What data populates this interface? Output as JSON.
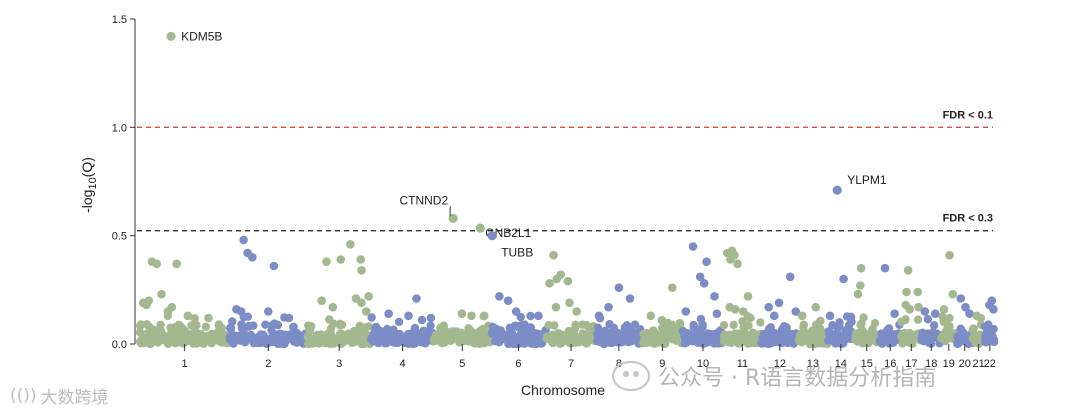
{
  "chart_data": {
    "type": "scatter",
    "subtype": "manhattan",
    "title": "",
    "xlabel": "Chromosome",
    "ylabel_prefix": "-log",
    "ylabel_sub": "10",
    "ylabel_suffix": "(Q)",
    "ylim": [
      0,
      1.5
    ],
    "yticks": [
      0.0,
      0.5,
      1.0,
      1.5
    ],
    "ytick_labels": [
      "0.0",
      "0.5",
      "1.0",
      "1.5"
    ],
    "chromosomes": [
      "1",
      "2",
      "3",
      "4",
      "5",
      "6",
      "7",
      "8",
      "9",
      "10",
      "11",
      "12",
      "13",
      "14",
      "15",
      "16",
      "17",
      "18",
      "19",
      "20",
      "21",
      "22"
    ],
    "chrom_spans": [
      [
        0,
        112
      ],
      [
        112,
        210
      ],
      [
        210,
        290
      ],
      [
        290,
        369
      ],
      [
        369,
        440
      ],
      [
        440,
        510
      ],
      [
        510,
        572
      ],
      [
        572,
        630
      ],
      [
        630,
        681
      ],
      [
        681,
        732
      ],
      [
        732,
        780
      ],
      [
        780,
        826
      ],
      [
        826,
        863
      ],
      [
        863,
        896
      ],
      [
        896,
        928
      ],
      [
        928,
        955
      ],
      [
        955,
        981
      ],
      [
        981,
        1005
      ],
      [
        1005,
        1025
      ],
      [
        1025,
        1045
      ],
      [
        1045,
        1060
      ],
      [
        1060,
        1073
      ]
    ],
    "x_range": [
      0,
      1073
    ],
    "colors": {
      "odd": "#a3b88e",
      "even": "#7b8cc7"
    },
    "thresholds": [
      {
        "label": "FDR < 0.1",
        "value": 1.0,
        "color": "#e8453c"
      },
      {
        "label": "FDR < 0.3",
        "value": 0.523,
        "color": "#333333"
      }
    ],
    "highlighted": [
      {
        "gene": "KDM5B",
        "chrom": "1",
        "pos": 39,
        "value": 1.42
      },
      {
        "gene": "YLPM1",
        "chrom": "14",
        "pos": 875,
        "value": 0.71
      },
      {
        "gene": "CTNND2",
        "chrom": "5",
        "pos": 393,
        "value": 0.58
      },
      {
        "gene": "GNB2L1",
        "chrom": "5",
        "pos": 427,
        "value": 0.535
      },
      {
        "gene": "TUBB",
        "chrom": "6",
        "pos": 442,
        "value": 0.5
      }
    ],
    "points": [
      [
        0,
        15,
        0.38
      ],
      [
        0,
        21,
        0.37
      ],
      [
        0,
        46,
        0.37
      ],
      [
        0,
        27,
        0.23
      ],
      [
        0,
        11,
        0.2
      ],
      [
        0,
        4,
        0.19
      ],
      [
        0,
        8,
        0.18
      ],
      [
        0,
        40,
        0.17
      ],
      [
        0,
        35,
        0.15
      ],
      [
        0,
        60,
        0.13
      ],
      [
        0,
        86,
        0.12
      ],
      [
        1,
        130,
        0.48
      ],
      [
        1,
        135,
        0.42
      ],
      [
        1,
        141,
        0.4
      ],
      [
        1,
        168,
        0.36
      ],
      [
        1,
        121,
        0.16
      ],
      [
        1,
        127,
        0.15
      ],
      [
        1,
        161,
        0.15
      ],
      [
        1,
        187,
        0.12
      ],
      [
        2,
        264,
        0.46
      ],
      [
        2,
        252,
        0.39
      ],
      [
        2,
        277,
        0.39
      ],
      [
        2,
        234,
        0.38
      ],
      [
        2,
        278,
        0.34
      ],
      [
        2,
        287,
        0.22
      ],
      [
        2,
        271,
        0.21
      ],
      [
        2,
        228,
        0.2
      ],
      [
        2,
        242,
        0.17
      ],
      [
        2,
        278,
        0.19
      ],
      [
        2,
        284,
        0.15
      ],
      [
        3,
        347,
        0.21
      ],
      [
        3,
        312,
        0.14
      ],
      [
        3,
        337,
        0.13
      ],
      [
        3,
        365,
        0.12
      ],
      [
        4,
        404,
        0.14
      ],
      [
        4,
        416,
        0.13
      ],
      [
        4,
        432,
        0.13
      ],
      [
        5,
        451,
        0.22
      ],
      [
        5,
        462,
        0.2
      ],
      [
        5,
        472,
        0.15
      ],
      [
        5,
        500,
        0.13
      ],
      [
        6,
        519,
        0.41
      ],
      [
        6,
        523,
        0.3
      ],
      [
        6,
        528,
        0.32
      ],
      [
        6,
        537,
        0.29
      ],
      [
        6,
        539,
        0.19
      ],
      [
        6,
        514,
        0.28
      ],
      [
        6,
        522,
        0.17
      ],
      [
        6,
        548,
        0.15
      ],
      [
        7,
        601,
        0.26
      ],
      [
        7,
        615,
        0.21
      ],
      [
        7,
        588,
        0.17
      ],
      [
        7,
        576,
        0.13
      ],
      [
        8,
        668,
        0.26
      ],
      [
        8,
        641,
        0.13
      ],
      [
        8,
        655,
        0.11
      ],
      [
        9,
        694,
        0.45
      ],
      [
        9,
        711,
        0.38
      ],
      [
        9,
        703,
        0.31
      ],
      [
        9,
        708,
        0.28
      ],
      [
        9,
        721,
        0.22
      ],
      [
        9,
        685,
        0.15
      ],
      [
        9,
        724,
        0.14
      ],
      [
        10,
        737,
        0.42
      ],
      [
        10,
        743,
        0.43
      ],
      [
        10,
        746,
        0.41
      ],
      [
        10,
        741,
        0.39
      ],
      [
        10,
        750,
        0.37
      ],
      [
        10,
        763,
        0.22
      ],
      [
        10,
        740,
        0.17
      ],
      [
        10,
        747,
        0.16
      ],
      [
        10,
        757,
        0.15
      ],
      [
        10,
        766,
        0.12
      ],
      [
        11,
        816,
        0.31
      ],
      [
        11,
        802,
        0.19
      ],
      [
        11,
        789,
        0.17
      ],
      [
        11,
        823,
        0.15
      ],
      [
        11,
        796,
        0.13
      ],
      [
        12,
        848,
        0.17
      ],
      [
        12,
        831,
        0.13
      ],
      [
        13,
        883,
        0.3
      ],
      [
        13,
        866,
        0.13
      ],
      [
        14,
        905,
        0.35
      ],
      [
        14,
        904,
        0.27
      ],
      [
        14,
        901,
        0.23
      ],
      [
        15,
        935,
        0.35
      ],
      [
        15,
        947,
        0.14
      ],
      [
        16,
        964,
        0.34
      ],
      [
        16,
        976,
        0.24
      ],
      [
        16,
        962,
        0.24
      ],
      [
        16,
        961,
        0.18
      ],
      [
        16,
        977,
        0.17
      ],
      [
        16,
        966,
        0.16
      ],
      [
        17,
        985,
        0.15
      ],
      [
        17,
        998,
        0.14
      ],
      [
        18,
        1016,
        0.41
      ],
      [
        18,
        1020,
        0.23
      ],
      [
        18,
        1009,
        0.16
      ],
      [
        19,
        1030,
        0.21
      ],
      [
        19,
        1036,
        0.17
      ],
      [
        19,
        1041,
        0.14
      ],
      [
        20,
        1050,
        0.13
      ],
      [
        20,
        1055,
        0.12
      ],
      [
        21,
        1069,
        0.2
      ],
      [
        21,
        1066,
        0.18
      ],
      [
        21,
        1071,
        0.16
      ]
    ]
  },
  "watermark_left": {
    "logo": "(())",
    "text": "大数跨境"
  },
  "watermark_right": {
    "text": "公众号 · R语言数据分析指南"
  }
}
